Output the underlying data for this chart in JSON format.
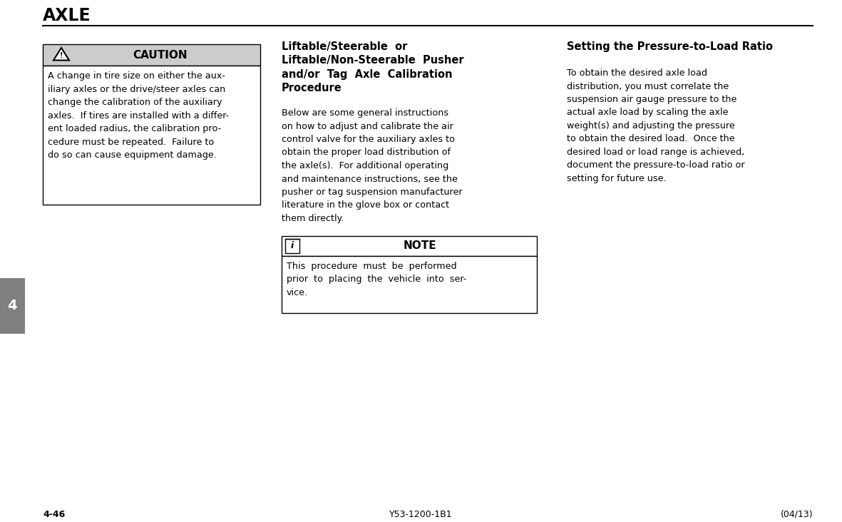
{
  "title": "AXLE",
  "page_bg": "#ffffff",
  "title_color": "#000000",
  "tab_number": "4",
  "tab_bg": "#808080",
  "tab_text_color": "#ffffff",
  "footer_left": "4-46",
  "footer_center": "Y53-1200-1B1",
  "footer_right": "(04/13)",
  "caution_header": "CAUTION",
  "caution_header_bg": "#cccccc",
  "caution_box_border": "#000000",
  "note_header": "NOTE",
  "note_box_border": "#000000",
  "middle_title_lines": [
    "Liftable/Steerable  or",
    "Liftable/Non-Steerable  Pusher",
    "and/or  Tag  Axle  Calibration",
    "Procedure"
  ],
  "middle_body_lines": [
    "Below are some general instructions",
    "on how to adjust and calibrate the air",
    "control valve for the auxiliary axles to",
    "obtain the proper load distribution of",
    "the axle(s).  For additional operating",
    "and maintenance instructions, see the",
    "pusher or tag suspension manufacturer",
    "literature in the glove box or contact",
    "them directly."
  ],
  "caution_body_lines": [
    "A change in tire size on either the aux-",
    "iliary axles or the drive/steer axles can",
    "change the calibration of the auxiliary",
    "axles.  If tires are installed with a differ-",
    "ent loaded radius, the calibration pro-",
    "cedure must be repeated.  Failure to",
    "do so can cause equipment damage."
  ],
  "note_body_lines": [
    "This  procedure  must  be  performed",
    "prior  to  placing  the  vehicle  into  ser-",
    "vice."
  ],
  "right_title": "Setting the Pressure-to-Load Ratio",
  "right_body_lines": [
    "To obtain the desired axle load",
    "distribution, you must correlate the",
    "suspension air gauge pressure to the",
    "actual axle load by scaling the axle",
    "weight(s) and adjusting the pressure",
    "to obtain the desired load.  Once the",
    "desired load or load range is achieved,",
    "document the pressure-to-load ratio or",
    "setting for future use."
  ]
}
